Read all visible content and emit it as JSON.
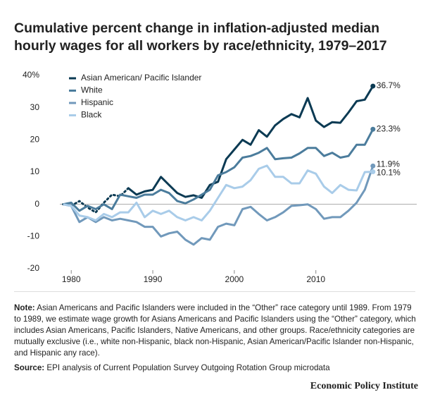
{
  "chart_data": {
    "type": "line",
    "title": "Cumulative percent change in inflation-adjusted median hourly wages for all workers by race/ethnicity, 1979–2017",
    "x": [
      1979,
      1980,
      1981,
      1982,
      1983,
      1984,
      1985,
      1986,
      1987,
      1988,
      1989,
      1990,
      1991,
      1992,
      1993,
      1994,
      1995,
      1996,
      1997,
      1998,
      1999,
      2000,
      2001,
      2002,
      2003,
      2004,
      2005,
      2006,
      2007,
      2008,
      2009,
      2010,
      2011,
      2012,
      2013,
      2014,
      2015,
      2016,
      2017
    ],
    "xlim": [
      1978.6,
      2018.4
    ],
    "xticks": [
      1980,
      1990,
      2000,
      2010
    ],
    "ylim": [
      -20,
      40
    ],
    "yticks": [
      -20,
      -10,
      0,
      10,
      20,
      30,
      {
        "value": 40,
        "label": "40%"
      }
    ],
    "legend": "upper left",
    "series": [
      {
        "name": "Asian American/ Pacific Islander",
        "color": "#0b3a53",
        "dotted_until": 1987,
        "end_label": "36.7%",
        "values": [
          0,
          -0.5,
          1,
          -1,
          -2.5,
          0.5,
          3,
          2.5,
          5,
          3,
          4,
          4.5,
          8.5,
          6,
          3.5,
          2.3,
          2.8,
          2,
          6,
          7,
          14,
          17,
          20,
          18.5,
          23,
          21,
          24.5,
          26.5,
          28,
          27,
          33,
          26,
          24,
          25.5,
          25.3,
          28.5,
          32,
          32.5,
          36.7
        ]
      },
      {
        "name": "White",
        "color": "#4b7c9c",
        "end_label": "23.3%",
        "values": [
          0,
          0.5,
          -2,
          -0.5,
          -1.5,
          0,
          -1.5,
          3,
          2.5,
          2,
          3,
          3,
          4.5,
          3.5,
          1,
          0.3,
          1.5,
          3,
          4.5,
          9,
          10,
          11.5,
          14.5,
          15,
          16,
          17.5,
          14,
          14.3,
          14.5,
          15.8,
          17.5,
          17.5,
          15,
          16,
          14.5,
          15,
          18.5,
          18.5,
          23.3
        ]
      },
      {
        "name": "Hispanic",
        "color": "#7199bb",
        "end_label": "11.9%",
        "values": [
          0,
          -0.5,
          -5.5,
          -4,
          -5.5,
          -4,
          -5,
          -4.5,
          -5,
          -5.5,
          -7,
          -7,
          -10,
          -9,
          -8.5,
          -11,
          -12.5,
          -10.5,
          -11,
          -7,
          -6,
          -6.5,
          -1.5,
          -0.8,
          -3,
          -5,
          -4,
          -2.5,
          -0.5,
          -0.3,
          0,
          -1.5,
          -4.5,
          -4,
          -4,
          -2,
          0.5,
          4.5,
          11.9
        ]
      },
      {
        "name": "Black",
        "color": "#a9cce9",
        "end_label": "10.1%",
        "values": [
          0,
          -0.5,
          -3.5,
          -4,
          -5,
          -3,
          -4,
          -2.5,
          -2.5,
          0.5,
          -4,
          -2,
          -3,
          -2,
          -4,
          -5,
          -4,
          -5,
          -2,
          2,
          6,
          5,
          5.5,
          7.5,
          11,
          12,
          8.5,
          8.5,
          6.5,
          6.5,
          10.5,
          9.5,
          5.5,
          3.5,
          6,
          4.5,
          4.3,
          10,
          10.1
        ]
      }
    ],
    "note_label": "Note:",
    "note": "Asian Americans and Pacific Islanders were included in the “Other” race category until 1989. From 1979 to 1989, we estimate wage growth for Asians Americans and Pacific Islanders using the “Other” category, which includes Asian Americans, Pacific Islanders, Native Americans, and other groups. Race/ethnicity categories are mutually exclusive (i.e., white non-Hispanic, black non-Hispanic, Asian American/Pacific Islander non-Hispanic, and Hispanic any race).",
    "source_label": "Source:",
    "source": "EPI analysis of Current Population Survey Outgoing Rotation Group microdata",
    "brand": "Economic Policy Institute"
  }
}
